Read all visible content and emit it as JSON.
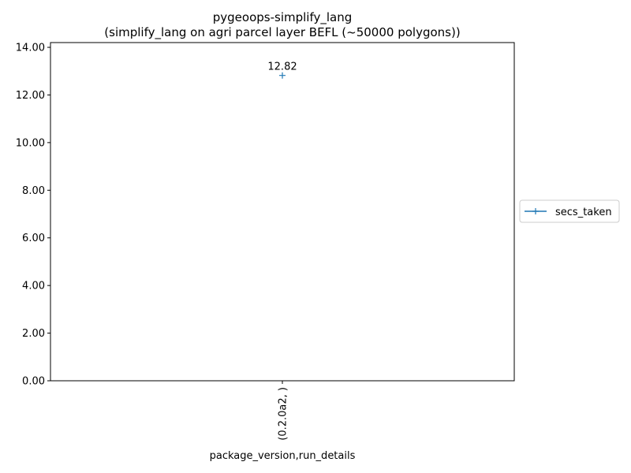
{
  "chart_data": {
    "type": "line",
    "title": "pygeoops-simplify_lang",
    "subtitle": "(simplify_lang on agri parcel layer BEFL (~50000 polygons))",
    "xlabel": "package_version,run_details",
    "ylabel": "",
    "categories": [
      "(0.2.0a2, )"
    ],
    "series": [
      {
        "name": "secs_taken",
        "values": [
          12.82
        ],
        "color": "#1f77b4",
        "marker": "plus"
      }
    ],
    "data_labels": [
      "12.82"
    ],
    "ylim": [
      0,
      14.2
    ],
    "yticks": [
      0,
      2,
      4,
      6,
      8,
      10,
      12,
      14
    ],
    "ytick_labels": [
      "0.00",
      "2.00",
      "4.00",
      "6.00",
      "8.00",
      "10.00",
      "12.00",
      "14.00"
    ],
    "grid": false,
    "legend_position": "right-center"
  }
}
